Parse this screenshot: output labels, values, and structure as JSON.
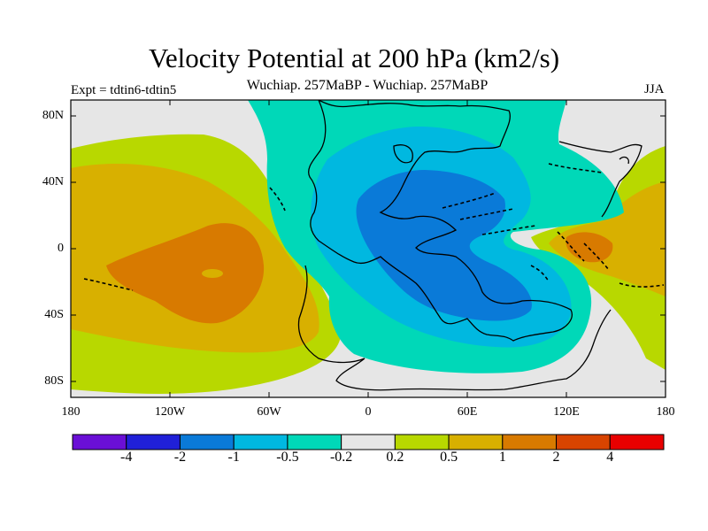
{
  "title": "Velocity Potential at 200 hPa (km2/s)",
  "subtitle": "Wuchiap. 257MaBP - Wuchiap. 257MaBP",
  "left_label": "Expt = tdtin6-tdtin5",
  "right_label": "JJA",
  "axes": {
    "lat_labels": [
      "80N",
      "40N",
      "0",
      "40S",
      "80S"
    ],
    "lon_labels": [
      "180",
      "120W",
      "60W",
      "0",
      "60E",
      "120E",
      "180"
    ]
  },
  "colorbar": {
    "colors": [
      "#6a0fd6",
      "#2020d8",
      "#0a7ad8",
      "#00b8e0",
      "#00d8b8",
      "#e6e6e6",
      "#b8d800",
      "#d8b000",
      "#d87a00",
      "#d84400",
      "#e80000"
    ],
    "labels": [
      "-4",
      "-2",
      "-1",
      "-0.5",
      "-0.2",
      "0.2",
      "0.5",
      "1",
      "2",
      "4"
    ]
  },
  "chart_data": {
    "type": "contour_map",
    "title": "Velocity Potential at 200 hPa (km2/s)",
    "season": "JJA",
    "levels": [
      -4,
      -2,
      -1,
      -0.5,
      -0.2,
      0.2,
      0.5,
      1,
      2,
      4
    ],
    "lon_range": [
      -180,
      180
    ],
    "lat_range": [
      -90,
      90
    ],
    "features": [
      {
        "name": "negative center",
        "lon": 50,
        "lat": -10,
        "approx_value": -1.5
      },
      {
        "name": "positive center",
        "lon": -95,
        "lat": -10,
        "approx_value": 1.5
      },
      {
        "name": "positive center",
        "lon": 138,
        "lat": 2,
        "approx_value": 1.5
      }
    ]
  }
}
